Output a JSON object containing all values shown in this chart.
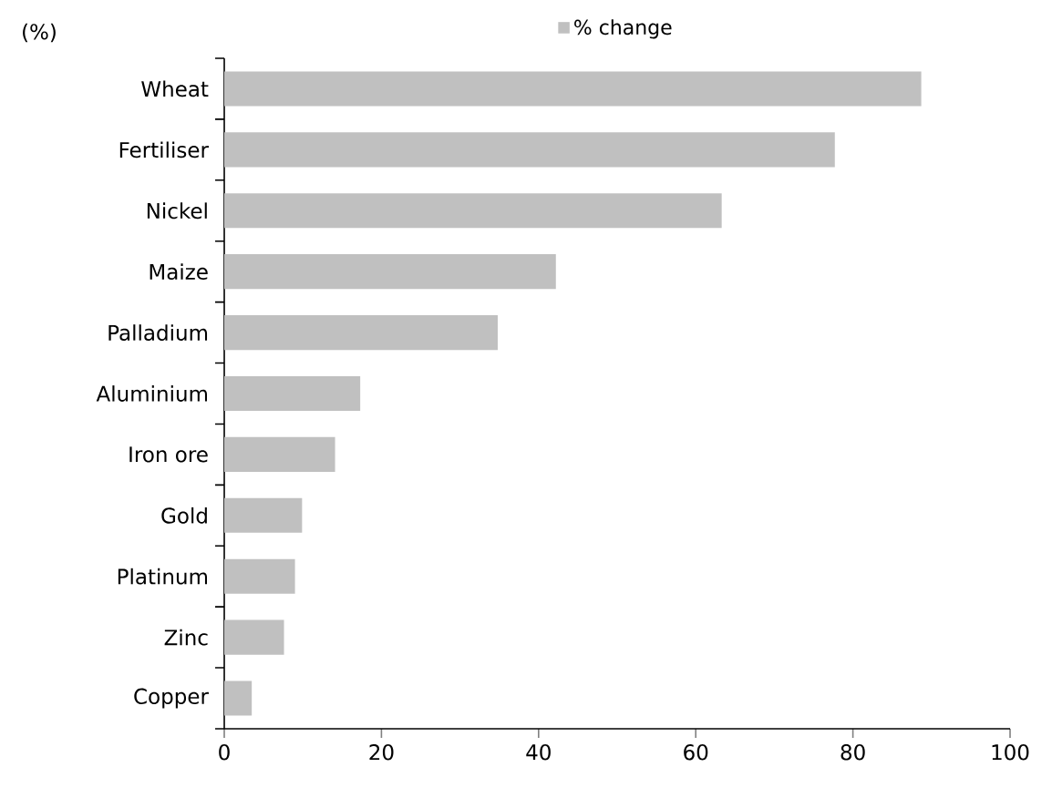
{
  "chart_data": {
    "type": "bar",
    "orientation": "horizontal",
    "annotations": [
      "(%)"
    ],
    "categories": [
      "Wheat",
      "Fertiliser",
      "Nickel",
      "Maize",
      "Palladium",
      "Aluminium",
      "Iron ore",
      "Gold",
      "Platinum",
      "Zinc",
      "Copper"
    ],
    "series": [
      {
        "name": "% change",
        "color": "#c0c0c0",
        "values": [
          88.7,
          77.7,
          63.3,
          42.2,
          34.8,
          17.3,
          14.1,
          9.9,
          9.0,
          7.6,
          3.5
        ]
      }
    ],
    "xlim": [
      0,
      100
    ],
    "xticks": [
      0,
      20,
      40,
      60,
      80,
      100
    ],
    "legend": "top",
    "grid": false
  }
}
